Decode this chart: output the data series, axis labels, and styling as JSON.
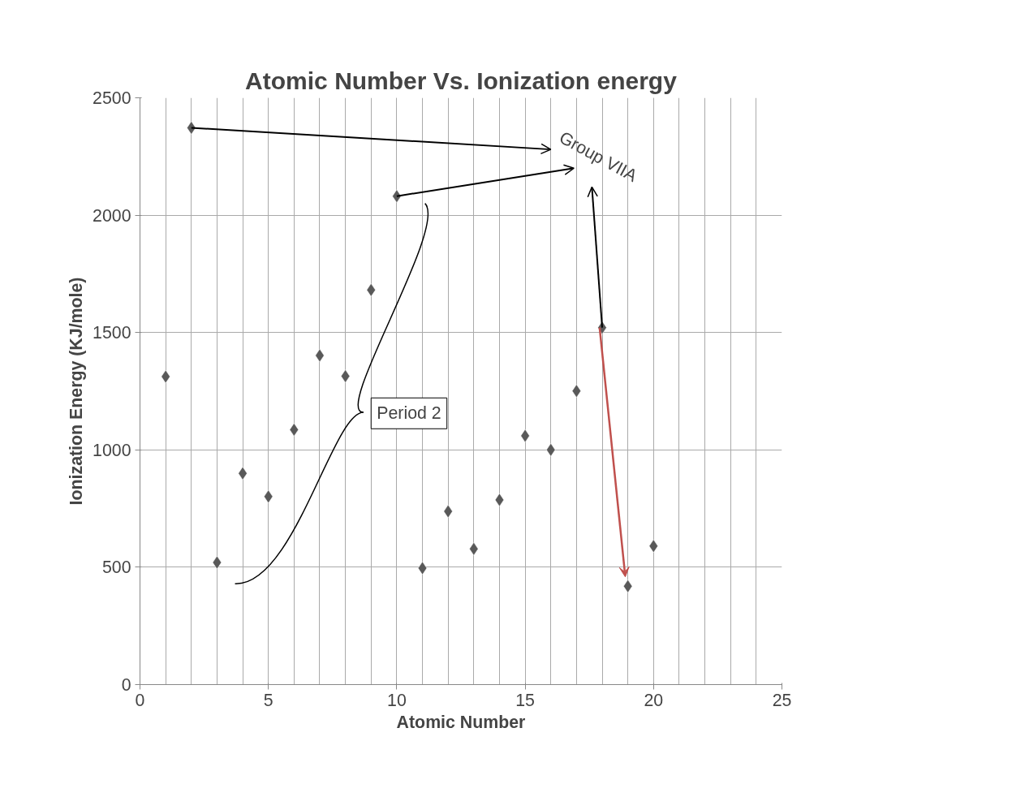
{
  "chart_data": {
    "type": "scatter",
    "title": "Atomic Number Vs. Ionization energy",
    "xlabel": "Atomic Number",
    "ylabel": "Ionization Energy (KJ/mole)",
    "x": [
      1,
      2,
      3,
      4,
      5,
      6,
      7,
      8,
      9,
      10,
      11,
      12,
      13,
      14,
      15,
      16,
      17,
      18,
      19,
      20
    ],
    "series": [
      {
        "color": "#595959",
        "values": [
          1312,
          2372,
          520,
          900,
          801,
          1086,
          1402,
          1314,
          1681,
          2081,
          496,
          738,
          578,
          787,
          1060,
          1000,
          1251,
          1521,
          419,
          590
        ]
      }
    ],
    "xlim": [
      0,
      25
    ],
    "xticks": [
      0,
      5,
      10,
      15,
      20,
      25
    ],
    "ylim": [
      0,
      2500
    ],
    "yticks": [
      0,
      500,
      1000,
      1500,
      2000,
      2500
    ],
    "grid": true,
    "marker": "diamond",
    "annotations": [
      {
        "text": "Group VIIA",
        "x": 18,
        "y": 1521
      },
      "Period 2"
    ]
  }
}
